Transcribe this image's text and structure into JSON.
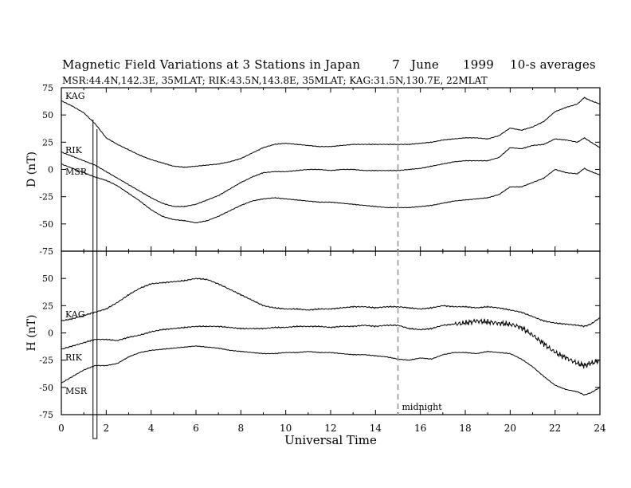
{
  "chart_data": {
    "type": "line",
    "title": "Magnetic Field Variations at 3 Stations in Japan",
    "title_date": [
      "7",
      "June",
      "1999"
    ],
    "title_note": "10-s averages",
    "subtitle": "MSR:44.4N,142.3E, 35MLAT;   RIK:43.5N,143.8E, 35MLAT;   KAG:31.5N,130.7E, 22MLAT",
    "xlabel": "Universal Time",
    "xlim": [
      0,
      24
    ],
    "xticks": [
      "0",
      "2",
      "4",
      "6",
      "8",
      "10",
      "12",
      "14",
      "16",
      "18",
      "20",
      "22",
      "24"
    ],
    "annotation": {
      "text": "midnight",
      "x": 15
    },
    "grid": false,
    "panels": [
      {
        "ylabel": "D (nT)",
        "ylim": [
          -75,
          75
        ],
        "yticks": [
          "75",
          "50",
          "25",
          "0",
          "-25",
          "-50",
          "-75"
        ],
        "series": [
          {
            "name": "KAG",
            "x": [
              0,
              0.5,
              1,
              1.5,
              2,
              2.5,
              3,
              3.5,
              4,
              4.5,
              5,
              5.5,
              6,
              6.5,
              7,
              7.5,
              8,
              8.5,
              9,
              9.5,
              10,
              10.5,
              11,
              11.5,
              12,
              12.5,
              13,
              13.5,
              14,
              14.5,
              15,
              15.5,
              16,
              16.5,
              17,
              17.5,
              18,
              18.5,
              19,
              19.5,
              20,
              20.5,
              21,
              21.5,
              22,
              22.5,
              23,
              23.3,
              23.6,
              24
            ],
            "values": [
              63,
              58,
              52,
              42,
              29,
              23,
              18,
              13,
              9,
              6,
              3,
              2,
              3,
              4,
              5,
              7,
              10,
              15,
              20,
              23,
              24,
              23,
              22,
              21,
              21,
              22,
              23,
              23,
              23,
              23,
              23,
              23,
              24,
              25,
              27,
              28,
              29,
              29,
              28,
              31,
              38,
              36,
              39,
              44,
              53,
              57,
              60,
              66,
              63,
              60
            ]
          },
          {
            "name": "RIK",
            "x": [
              0,
              0.5,
              1,
              1.5,
              2,
              2.5,
              3,
              3.5,
              4,
              4.5,
              5,
              5.5,
              6,
              6.5,
              7,
              7.5,
              8,
              8.5,
              9,
              9.5,
              10,
              10.5,
              11,
              11.5,
              12,
              12.5,
              13,
              13.5,
              14,
              14.5,
              15,
              15.5,
              16,
              16.5,
              17,
              17.5,
              18,
              18.5,
              19,
              19.5,
              20,
              20.5,
              21,
              21.5,
              22,
              22.5,
              23,
              23.3,
              23.6,
              24
            ],
            "values": [
              16,
              12,
              8,
              4,
              -2,
              -8,
              -14,
              -20,
              -26,
              -31,
              -34,
              -34,
              -32,
              -28,
              -24,
              -18,
              -12,
              -7,
              -3,
              -2,
              -2,
              -1,
              0,
              0,
              -1,
              0,
              0,
              -1,
              -1,
              -1,
              -1,
              0,
              1,
              3,
              5,
              7,
              8,
              8,
              8,
              11,
              20,
              19,
              22,
              23,
              28,
              27,
              25,
              29,
              25,
              20
            ]
          },
          {
            "name": "MSR",
            "x": [
              0,
              0.5,
              1,
              1.5,
              2,
              2.5,
              3,
              3.5,
              4,
              4.5,
              5,
              5.5,
              6,
              6.5,
              7,
              7.5,
              8,
              8.5,
              9,
              9.5,
              10,
              10.5,
              11,
              11.5,
              12,
              12.5,
              13,
              13.5,
              14,
              14.5,
              15,
              15.5,
              16,
              16.5,
              17,
              17.5,
              18,
              18.5,
              19,
              19.5,
              20,
              20.5,
              21,
              21.5,
              22,
              22.5,
              23,
              23.3,
              23.6,
              24
            ],
            "values": [
              5,
              1,
              -3,
              -7,
              -10,
              -15,
              -22,
              -29,
              -37,
              -43,
              -46,
              -47,
              -49,
              -47,
              -43,
              -38,
              -33,
              -29,
              -27,
              -26,
              -27,
              -28,
              -29,
              -30,
              -30,
              -31,
              -32,
              -33,
              -34,
              -35,
              -35,
              -35,
              -34,
              -33,
              -31,
              -29,
              -28,
              -27,
              -26,
              -23,
              -16,
              -16,
              -12,
              -8,
              0,
              -3,
              -4,
              1,
              -2,
              -5
            ]
          }
        ]
      },
      {
        "ylabel": "H (nT)",
        "ylim": [
          -75,
          75
        ],
        "yticks": [
          "50",
          "25",
          "0",
          "-25",
          "-50",
          "-75"
        ],
        "series": [
          {
            "name": "KAG",
            "x": [
              0,
              0.5,
              1,
              1.5,
              2,
              2.5,
              3,
              3.5,
              4,
              4.5,
              5,
              5.5,
              6,
              6.5,
              7,
              7.5,
              8,
              8.5,
              9,
              9.5,
              10,
              10.5,
              11,
              11.5,
              12,
              12.5,
              13,
              13.5,
              14,
              14.5,
              15,
              15.5,
              16,
              16.5,
              17,
              17.5,
              18,
              18.5,
              19,
              19.5,
              20,
              20.5,
              21,
              21.5,
              22,
              22.5,
              23,
              23.3,
              23.6,
              24
            ],
            "values": [
              11,
              13,
              16,
              19,
              22,
              28,
              35,
              41,
              45,
              46,
              47,
              48,
              50,
              49,
              45,
              40,
              35,
              30,
              25,
              23,
              22,
              22,
              21,
              22,
              22,
              23,
              24,
              24,
              23,
              24,
              24,
              23,
              22,
              23,
              25,
              24,
              24,
              23,
              24,
              23,
              21,
              19,
              15,
              11,
              9,
              8,
              7,
              6,
              8,
              14
            ]
          },
          {
            "name": "RIK",
            "x": [
              0,
              0.5,
              1,
              1.5,
              2,
              2.5,
              3,
              3.5,
              4,
              4.5,
              5,
              5.5,
              6,
              6.5,
              7,
              7.5,
              8,
              8.5,
              9,
              9.5,
              10,
              10.5,
              11,
              11.5,
              12,
              12.5,
              13,
              13.5,
              14,
              14.5,
              15,
              15.5,
              16,
              16.5,
              17,
              17.5,
              18,
              18.5,
              19,
              19.5,
              20,
              20.5,
              21,
              21.5,
              22,
              22.5,
              23,
              23.3,
              23.6,
              24
            ],
            "values": [
              -15,
              -12,
              -9,
              -6,
              -6,
              -7,
              -4,
              -2,
              1,
              3,
              4,
              5,
              6,
              6,
              6,
              5,
              4,
              4,
              4,
              5,
              5,
              6,
              6,
              6,
              5,
              6,
              6,
              7,
              6,
              7,
              7,
              4,
              3,
              4,
              7,
              8,
              9,
              11,
              10,
              9,
              8,
              5,
              -2,
              -10,
              -18,
              -23,
              -28,
              -30,
              -28,
              -25
            ]
          },
          {
            "name": "MSR",
            "x": [
              0,
              0.5,
              1,
              1.5,
              2,
              2.5,
              3,
              3.5,
              4,
              4.5,
              5,
              5.5,
              6,
              6.5,
              7,
              7.5,
              8,
              8.5,
              9,
              9.5,
              10,
              10.5,
              11,
              11.5,
              12,
              12.5,
              13,
              13.5,
              14,
              14.5,
              15,
              15.5,
              16,
              16.5,
              17,
              17.5,
              18,
              18.5,
              19,
              19.5,
              20,
              20.5,
              21,
              21.5,
              22,
              22.5,
              23,
              23.3,
              23.6,
              24
            ],
            "values": [
              -46,
              -40,
              -34,
              -30,
              -30,
              -28,
              -22,
              -18,
              -16,
              -15,
              -14,
              -13,
              -12,
              -13,
              -14,
              -16,
              -17,
              -18,
              -19,
              -19,
              -18,
              -18,
              -17,
              -18,
              -18,
              -19,
              -20,
              -20,
              -21,
              -22,
              -24,
              -25,
              -23,
              -24,
              -20,
              -18,
              -18,
              -19,
              -17,
              -18,
              -19,
              -24,
              -31,
              -40,
              -48,
              -52,
              -54,
              -57,
              -55,
              -50
            ]
          }
        ]
      }
    ]
  }
}
